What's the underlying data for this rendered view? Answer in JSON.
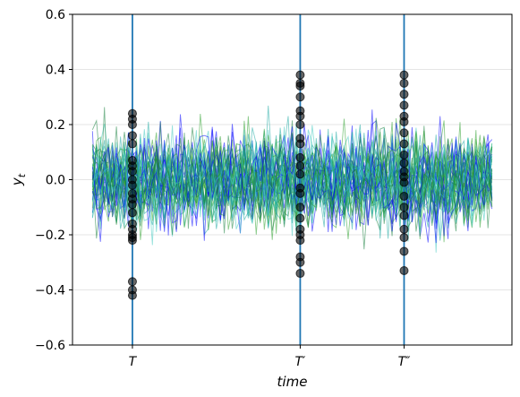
{
  "chart_data": {
    "type": "line",
    "title": "",
    "xlabel": "time",
    "ylabel_main": "y",
    "ylabel_sub": "t",
    "ylim": [
      -0.6,
      0.6
    ],
    "yticks": [
      -0.6,
      -0.4,
      -0.2,
      0.0,
      0.2,
      0.4,
      0.6
    ],
    "ytick_labels": [
      "−0.6",
      "−0.4",
      "−0.2",
      "0.0",
      "0.2",
      "0.4",
      "0.6"
    ],
    "xlim": [
      -5,
      105
    ],
    "grid": "horizontal",
    "series_count": 45,
    "series_colors": [
      "#0000ff",
      "#1aa7a0",
      "#2ca02c",
      "#15803d",
      "#40c8c0"
    ],
    "vertical_lines": [
      {
        "x": 10,
        "label": "T",
        "marks": [
          0.24,
          0.22,
          0.2,
          0.16,
          0.13,
          0.07,
          0.05,
          0.03,
          0.0,
          -0.02,
          -0.05,
          -0.07,
          -0.09,
          -0.12,
          -0.16,
          -0.18,
          -0.2,
          -0.21,
          -0.22,
          -0.37,
          -0.4,
          -0.42
        ]
      },
      {
        "x": 52,
        "label": "T′",
        "marks": [
          0.38,
          0.35,
          0.34,
          0.3,
          0.25,
          0.23,
          0.2,
          0.15,
          0.13,
          0.08,
          0.05,
          0.02,
          -0.03,
          -0.05,
          -0.1,
          -0.14,
          -0.18,
          -0.2,
          -0.22,
          -0.28,
          -0.3,
          -0.34
        ]
      },
      {
        "x": 78,
        "label": "T″",
        "marks": [
          0.38,
          0.35,
          0.31,
          0.27,
          0.23,
          0.21,
          0.17,
          0.13,
          0.09,
          0.06,
          0.03,
          0.01,
          -0.01,
          -0.06,
          -0.1,
          -0.13,
          -0.18,
          -0.21,
          -0.26,
          -0.33
        ]
      }
    ],
    "vline_color": "#1f77b4",
    "mark_color": "#000000",
    "series_amplitude": 0.13
  }
}
